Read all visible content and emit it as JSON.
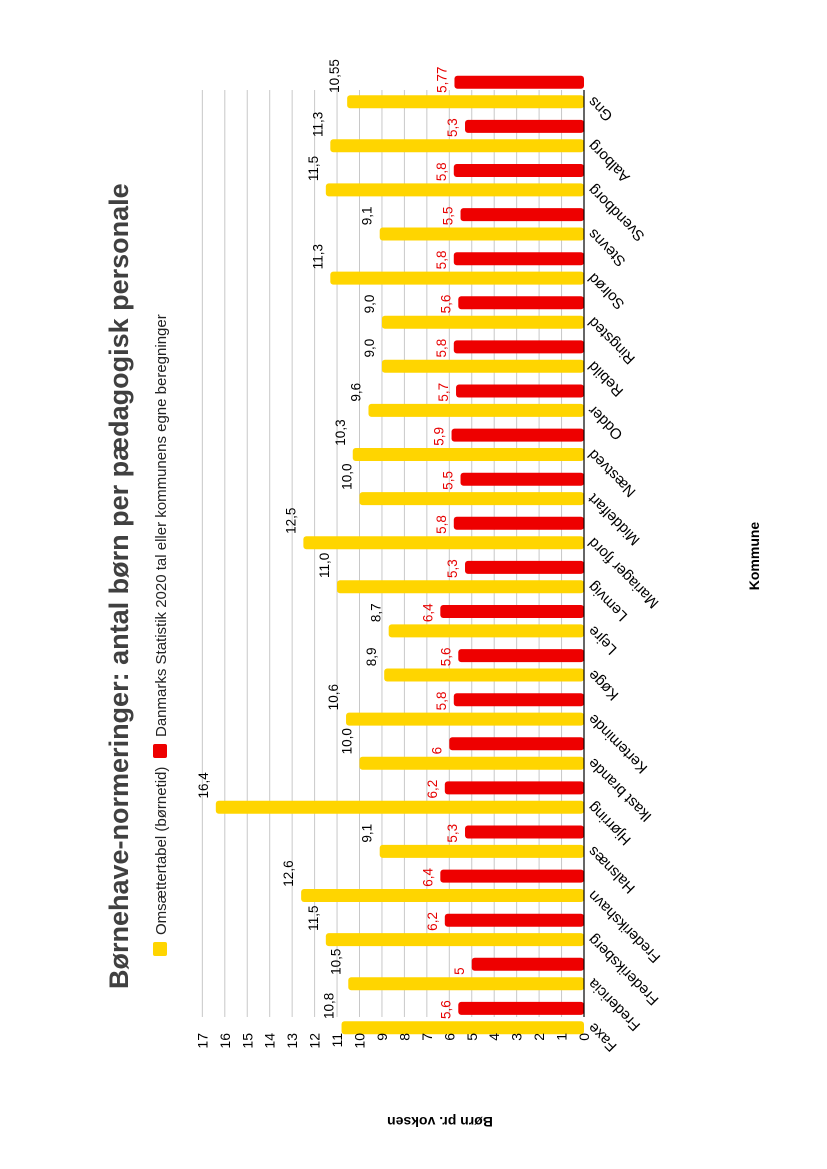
{
  "chart_data": {
    "type": "bar",
    "title": "Børnehave-normeringer: antal børn per pædagogisk personale",
    "xlabel": "Kommune",
    "ylabel": "Børn pr. voksen",
    "ylim": [
      0,
      17
    ],
    "yticks": [
      "0",
      "1",
      "2",
      "3",
      "4",
      "5",
      "6",
      "7",
      "8",
      "9",
      "10",
      "11",
      "12",
      "13",
      "14",
      "15",
      "16",
      "17"
    ],
    "grid": true,
    "legend_position": "top",
    "colors": {
      "yellow": "#FFD500",
      "red": "#EE0000",
      "grid": "#C8C8C8"
    },
    "categories": [
      "Faxe",
      "Fredericia",
      "Frederiksberg",
      "Frederikshavn",
      "Halsnæs",
      "Hjørring",
      "Ikast brande",
      "Kerteminde",
      "Køge",
      "Lejre",
      "Lemvig",
      "Mariager fjord",
      "Middelfart",
      "Næstved",
      "Odder",
      "Rebild",
      "Ringsted",
      "Solrød",
      "Stevns",
      "Svendborg",
      "Aalborg",
      "Gns"
    ],
    "series": [
      {
        "name": "Omsættertabel (børnetid)",
        "color": "#FFD500",
        "values": [
          10.8,
          10.5,
          11.5,
          12.6,
          9.1,
          16.4,
          10.0,
          10.6,
          8.9,
          8.7,
          11.0,
          12.5,
          10.0,
          10.3,
          9.6,
          9.0,
          9.0,
          11.3,
          9.1,
          11.5,
          11.3,
          10.55
        ],
        "labels": [
          "10,8",
          "10,5",
          "11,5",
          "12,6",
          "9,1",
          "16,4",
          "10,0",
          "10,6",
          "8,9",
          "8,7",
          "11,0",
          "12,5",
          "10,0",
          "10,3",
          "9,6",
          "9,0",
          "9,0",
          "11,3",
          "9,1",
          "11,5",
          "11,3",
          "10,55"
        ]
      },
      {
        "name": "Danmarks Statistik 2020 tal eller kommunens egne beregninger",
        "color": "#EE0000",
        "values": [
          5.6,
          5.0,
          6.2,
          6.4,
          5.3,
          6.2,
          6.0,
          5.8,
          5.6,
          6.4,
          5.3,
          5.8,
          5.5,
          5.9,
          5.7,
          5.8,
          5.6,
          5.8,
          5.5,
          5.8,
          5.3,
          5.77
        ],
        "labels": [
          "5,6",
          "5",
          "6,2",
          "6,4",
          "5,3",
          "6,2",
          "6",
          "5,8",
          "5,6",
          "6,4",
          "5,3",
          "5,8",
          "5,5",
          "5,9",
          "5,7",
          "5,8",
          "5,6",
          "5,8",
          "5,5",
          "5,8",
          "5,3",
          "5,77"
        ]
      }
    ]
  }
}
